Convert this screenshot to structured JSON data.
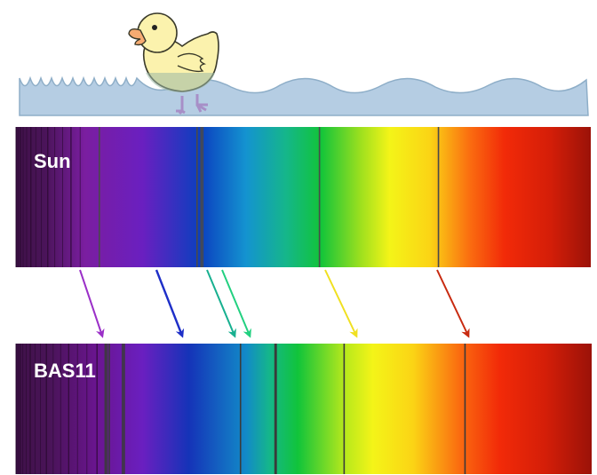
{
  "spectra": {
    "sun": {
      "label": "Sun",
      "absorption_lines": [
        0.145,
        0.315,
        0.322,
        0.325,
        0.528,
        0.735
      ]
    },
    "bas11": {
      "label": "BAS11",
      "absorption_lines": [
        0.155,
        0.158,
        0.162,
        0.185,
        0.188,
        0.39,
        0.45,
        0.452,
        0.57,
        0.78
      ]
    }
  },
  "redshift_arrows": [
    {
      "color": "#9b30c8"
    },
    {
      "color": "#1e2fc8"
    },
    {
      "color": "#18b090"
    },
    {
      "color": "#22d080"
    },
    {
      "color": "#f0e020"
    },
    {
      "color": "#c82a10"
    }
  ],
  "illustration": {
    "character": "rubber-duck",
    "water_color": "#b5cde3"
  }
}
